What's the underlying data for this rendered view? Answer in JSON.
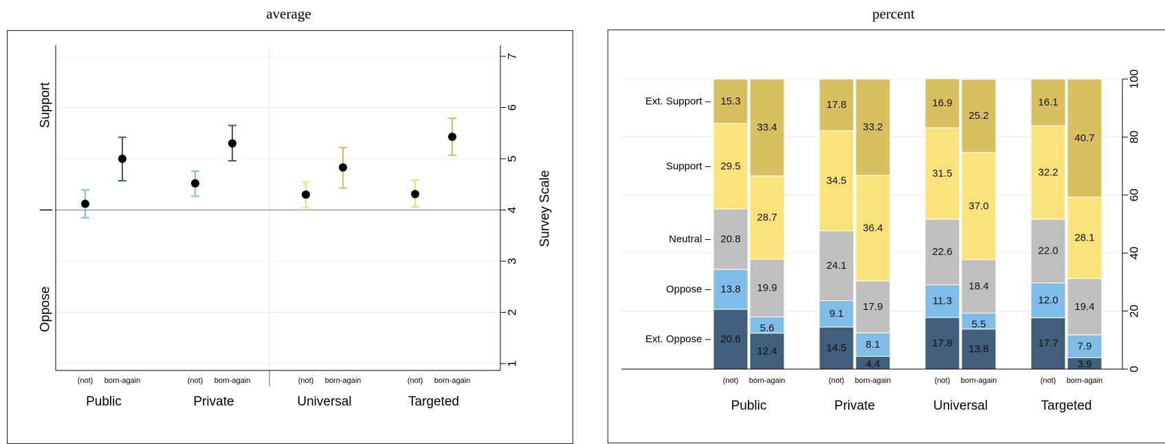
{
  "chart_data": [
    {
      "type": "scatter",
      "title": "average",
      "y_axis_label": "Survey Scale",
      "ylim": [
        1,
        7
      ],
      "yticks": [
        "1",
        "2",
        "3",
        "4",
        "5",
        "6",
        "7"
      ],
      "reference_line": 4,
      "left_side_labels": [
        "Support",
        "Oppose"
      ],
      "groups": [
        "Public",
        "Private",
        "Universal",
        "Targeted"
      ],
      "subgroups": [
        "(not)",
        "born-again"
      ],
      "points": [
        {
          "group": "Public",
          "subgroup": "(not)",
          "mean": 4.12,
          "low": 3.85,
          "high": 4.39,
          "color": "#7fbde8"
        },
        {
          "group": "Public",
          "subgroup": "born-again",
          "mean": 5.0,
          "low": 4.57,
          "high": 5.42,
          "color": "#3a5f7d"
        },
        {
          "group": "Private",
          "subgroup": "(not)",
          "mean": 4.52,
          "low": 4.27,
          "high": 4.76,
          "color": "#7fbde8"
        },
        {
          "group": "Private",
          "subgroup": "born-again",
          "mean": 5.3,
          "low": 4.96,
          "high": 5.65,
          "color": "#3a5f7d"
        },
        {
          "group": "Universal",
          "subgroup": "(not)",
          "mean": 4.3,
          "low": 4.04,
          "high": 4.55,
          "color": "#f7dd6a"
        },
        {
          "group": "Universal",
          "subgroup": "born-again",
          "mean": 4.83,
          "low": 4.43,
          "high": 5.22,
          "color": "#d9bb55"
        },
        {
          "group": "Targeted",
          "subgroup": "(not)",
          "mean": 4.31,
          "low": 4.06,
          "high": 4.58,
          "color": "#f7dd6a"
        },
        {
          "group": "Targeted",
          "subgroup": "born-again",
          "mean": 5.43,
          "low": 5.07,
          "high": 5.79,
          "color": "#d9bb55"
        }
      ]
    },
    {
      "type": "bar",
      "stacked": true,
      "title": "percent",
      "ylim": [
        0,
        100
      ],
      "yticks": [
        "0",
        "20",
        "40",
        "60",
        "80",
        "100"
      ],
      "groups": [
        "Public",
        "Private",
        "Universal",
        "Targeted"
      ],
      "subgroups": [
        "(not)",
        "born-again"
      ],
      "category_labels": [
        "Ext. Support –",
        "Support –",
        "Neutral –",
        "Oppose –",
        "Ext. Oppose –"
      ],
      "series": [
        {
          "name": "Ext. Oppose",
          "color": "#3f5f7a",
          "values": [
            20.6,
            12.4,
            14.5,
            4.4,
            17.8,
            13.8,
            17.7,
            3.9
          ],
          "labels": [
            "20.6",
            "12.4",
            "14.5",
            "4.4",
            "17.8",
            "13.8",
            "17.7",
            "3.9"
          ]
        },
        {
          "name": "Oppose",
          "color": "#7fbde8",
          "values": [
            13.8,
            5.6,
            9.1,
            8.1,
            11.3,
            5.5,
            12.0,
            7.9
          ],
          "labels": [
            "13.8",
            "5.6",
            "9.1",
            "8.1",
            "11.3",
            "5.5",
            "12.0",
            "7.9"
          ]
        },
        {
          "name": "Neutral",
          "color": "#bfbfbf",
          "values": [
            20.8,
            19.9,
            24.1,
            17.9,
            22.6,
            18.4,
            22.0,
            19.4
          ],
          "labels": [
            "20.8",
            "19.9",
            "24.1",
            "17.9",
            "22.6",
            "18.4",
            "22.0",
            "19.4"
          ]
        },
        {
          "name": "Support",
          "color": "#fbe27a",
          "values": [
            29.5,
            28.7,
            34.5,
            36.4,
            31.5,
            37.0,
            32.2,
            28.1
          ],
          "labels": [
            "29.5",
            "28.7",
            "34.5",
            "36.4",
            "31.5",
            "37.0",
            "32.2",
            "28.1"
          ]
        },
        {
          "name": "Ext. Support",
          "color": "#d8c061",
          "values": [
            15.3,
            33.4,
            17.8,
            33.2,
            16.9,
            25.2,
            16.1,
            40.7
          ],
          "labels": [
            "15.3",
            "33.4",
            "17.8",
            "33.2",
            "16.9",
            "25.2",
            "16.1",
            "40.7"
          ]
        }
      ]
    }
  ]
}
